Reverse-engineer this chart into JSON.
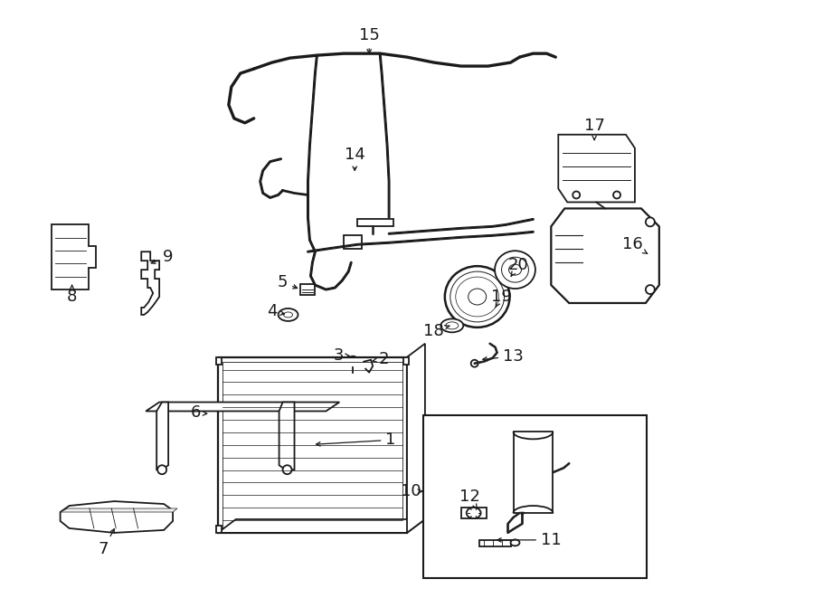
{
  "bg_color": "#ffffff",
  "line_color": "#1a1a1a",
  "fig_width": 9.0,
  "fig_height": 6.61,
  "font_size_labels": 13
}
